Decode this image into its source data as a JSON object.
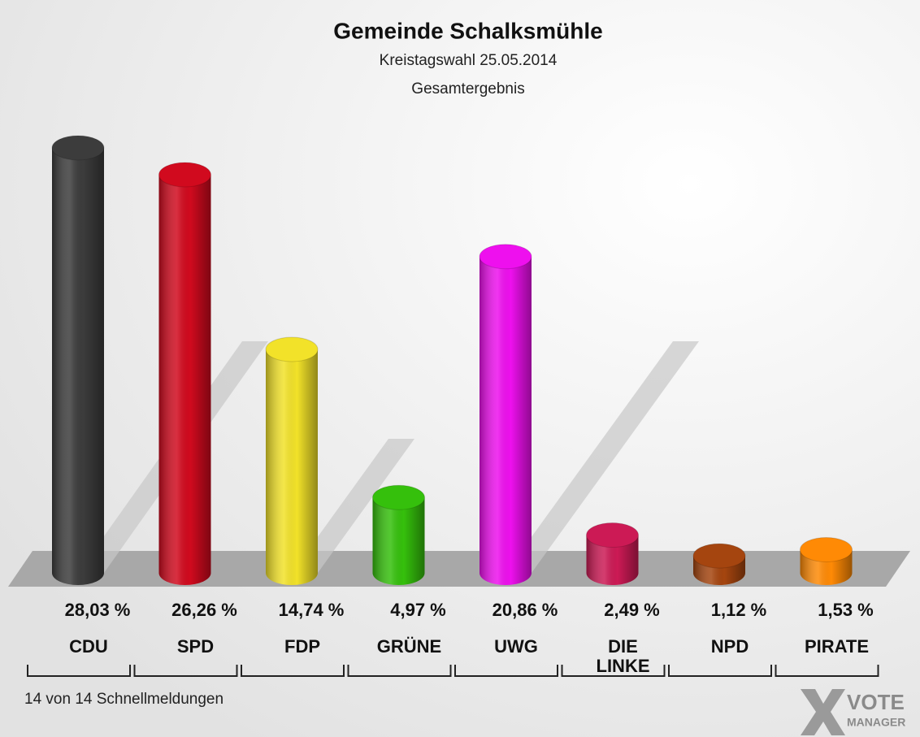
{
  "chart_data": {
    "type": "bar",
    "title": "Gemeinde Schalksmühle",
    "subtitle": [
      "Kreistagswahl 25.05.2014",
      "Gesamtergebnis"
    ],
    "categories": [
      "CDU",
      "SPD",
      "FDP",
      "GRÜNE",
      "UWG",
      "DIE LINKE",
      "NPD",
      "PIRATE"
    ],
    "values": [
      28.03,
      26.26,
      14.74,
      4.97,
      20.86,
      2.49,
      1.12,
      1.53
    ],
    "value_labels": [
      "28,03 %",
      "26,26 %",
      "14,74 %",
      "4,97 %",
      "20,86 %",
      "2,49 %",
      "1,12 %",
      "1,53 %"
    ],
    "colors": [
      "#3c3c3c",
      "#d10a1e",
      "#f2e229",
      "#35c00c",
      "#ee10ee",
      "#cc1a55",
      "#a5450f",
      "#ff8a05"
    ],
    "footer": "14 von 14 Schnellmeldungen",
    "logo": [
      "VOTE",
      "MANAGER"
    ]
  }
}
